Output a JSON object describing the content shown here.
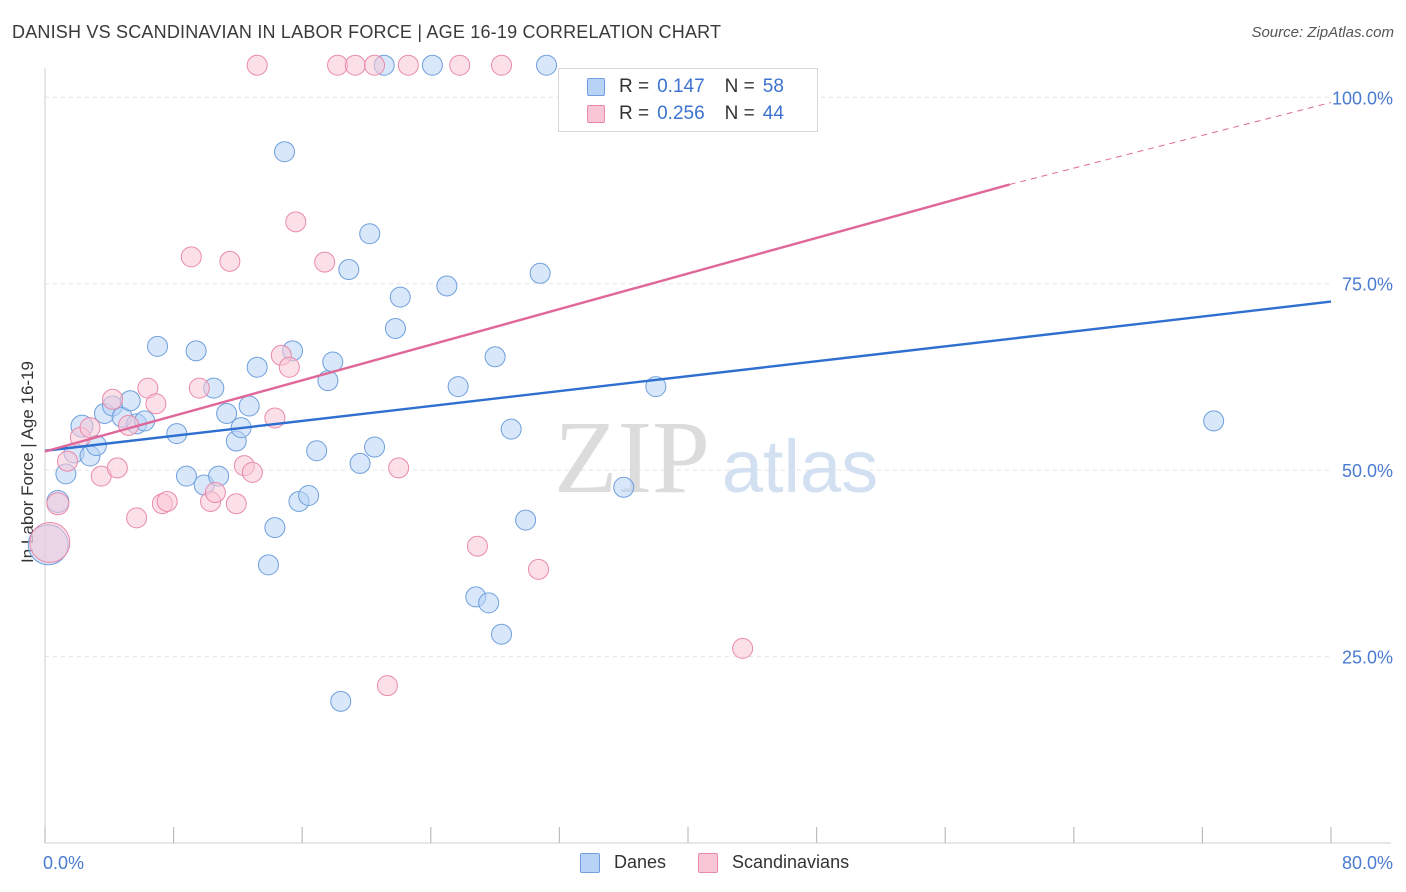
{
  "header": {
    "title": "DANISH VS SCANDINAVIAN IN LABOR FORCE | AGE 16-19 CORRELATION CHART",
    "source": "Source: ZipAtlas.com"
  },
  "watermark": {
    "zip": "ZIP",
    "atlas": "atlas"
  },
  "legend": {
    "rows": [
      {
        "r_label": "R = ",
        "r_value": "0.147",
        "n_label": "N = ",
        "n_value": "58",
        "fill": "#b8d3f5",
        "stroke": "#6f9fdc"
      },
      {
        "r_label": "R = ",
        "r_value": "0.256",
        "n_label": "N = ",
        "n_value": "44",
        "fill": "#f9c6d6",
        "stroke": "#e98aab"
      }
    ]
  },
  "bottom_legend": {
    "items": [
      {
        "label": "Danes",
        "fill": "#b8d3f5",
        "stroke": "#6f9fdc"
      },
      {
        "label": "Scandinavians",
        "fill": "#f9c6d6",
        "stroke": "#e98aab"
      }
    ]
  },
  "chart_data": {
    "type": "scatter",
    "title": "DANISH VS SCANDINAVIAN IN LABOR FORCE | AGE 16-19 CORRELATION CHART",
    "xlabel": "",
    "ylabel": "In Labor Force | Age 16-19",
    "xlim": [
      0,
      80
    ],
    "ylim": [
      0,
      105
    ],
    "x_tick_labels": [
      "0.0%",
      "80.0%"
    ],
    "y_ticks": [
      25,
      50,
      75,
      100
    ],
    "y_tick_labels": [
      "25.0%",
      "50.0%",
      "75.0%",
      "100.0%"
    ],
    "grid": true,
    "legend_position": "top-center",
    "colors": {
      "danes": "#2f6fd0",
      "scandinavians": "#e0679a"
    },
    "series": [
      {
        "name": "Danes",
        "color": "#2f6fd0",
        "fill": "#b8d3f5",
        "trendline": {
          "x": [
            0,
            80
          ],
          "y": [
            52.6,
            72.6
          ]
        },
        "points": [
          [
            0.2,
            40.0,
            20
          ],
          [
            0.8,
            45.8,
            11
          ],
          [
            1.3,
            49.5,
            10
          ],
          [
            1.8,
            52.3,
            10
          ],
          [
            2.3,
            55.9,
            11
          ],
          [
            2.8,
            51.9,
            10
          ],
          [
            3.2,
            53.3,
            10
          ],
          [
            3.7,
            57.6,
            10
          ],
          [
            4.2,
            58.6,
            10
          ],
          [
            4.8,
            57.1,
            10
          ],
          [
            5.3,
            59.3,
            10
          ],
          [
            5.7,
            56.2,
            10
          ],
          [
            6.2,
            56.6,
            10
          ],
          [
            7.0,
            66.6,
            10
          ],
          [
            8.2,
            54.9,
            10
          ],
          [
            8.8,
            49.2,
            10
          ],
          [
            9.4,
            66.0,
            10
          ],
          [
            9.9,
            48.0,
            10
          ],
          [
            10.5,
            61.0,
            10
          ],
          [
            10.8,
            49.2,
            10
          ],
          [
            11.3,
            57.6,
            10
          ],
          [
            11.9,
            53.9,
            10
          ],
          [
            12.2,
            55.7,
            10
          ],
          [
            12.7,
            58.6,
            10
          ],
          [
            13.2,
            63.8,
            10
          ],
          [
            13.9,
            37.3,
            10
          ],
          [
            14.3,
            42.3,
            10
          ],
          [
            14.9,
            92.7,
            10
          ],
          [
            15.4,
            66.0,
            10
          ],
          [
            15.8,
            45.8,
            10
          ],
          [
            16.4,
            46.6,
            10
          ],
          [
            16.9,
            52.6,
            10
          ],
          [
            17.6,
            62.0,
            10
          ],
          [
            17.9,
            64.5,
            10
          ],
          [
            18.4,
            19.0,
            10
          ],
          [
            18.9,
            76.9,
            10
          ],
          [
            19.6,
            50.9,
            10
          ],
          [
            20.2,
            81.7,
            10
          ],
          [
            20.5,
            53.1,
            10
          ],
          [
            21.1,
            104.3,
            10
          ],
          [
            21.8,
            69.0,
            10
          ],
          [
            22.1,
            73.2,
            10
          ],
          [
            24.1,
            104.3,
            10
          ],
          [
            25.0,
            74.7,
            10
          ],
          [
            25.7,
            61.2,
            10
          ],
          [
            26.8,
            33.0,
            10
          ],
          [
            27.6,
            32.2,
            10
          ],
          [
            28.0,
            65.2,
            10
          ],
          [
            28.4,
            28.0,
            10
          ],
          [
            29.0,
            55.5,
            10
          ],
          [
            29.9,
            43.3,
            10
          ],
          [
            30.8,
            76.4,
            10
          ],
          [
            31.2,
            104.3,
            10
          ],
          [
            36.0,
            47.7,
            10
          ],
          [
            38.0,
            61.2,
            10
          ],
          [
            72.7,
            56.6,
            10
          ]
        ]
      },
      {
        "name": "Scandinavians",
        "color": "#e0679a",
        "fill": "#f9c6d6",
        "trendline": {
          "x": [
            0,
            60
          ],
          "y": [
            52.5,
            88.3
          ],
          "dash_x": [
            60,
            80
          ],
          "dash_y": [
            88.3,
            99.3
          ]
        },
        "points": [
          [
            0.3,
            40.3,
            20
          ],
          [
            0.8,
            45.5,
            11
          ],
          [
            1.4,
            51.2,
            10
          ],
          [
            2.2,
            54.4,
            10
          ],
          [
            2.8,
            55.7,
            10
          ],
          [
            3.5,
            49.2,
            10
          ],
          [
            4.2,
            59.5,
            10
          ],
          [
            4.5,
            50.3,
            10
          ],
          [
            5.2,
            56.0,
            10
          ],
          [
            5.7,
            43.6,
            10
          ],
          [
            6.4,
            61.0,
            10
          ],
          [
            6.9,
            58.9,
            10
          ],
          [
            7.3,
            45.5,
            10
          ],
          [
            7.6,
            45.8,
            10
          ],
          [
            9.1,
            78.6,
            10
          ],
          [
            9.6,
            61.0,
            10
          ],
          [
            10.3,
            45.8,
            10
          ],
          [
            10.6,
            47.0,
            10
          ],
          [
            11.5,
            78.0,
            10
          ],
          [
            11.9,
            45.5,
            10
          ],
          [
            12.4,
            50.6,
            10
          ],
          [
            12.9,
            49.7,
            10
          ],
          [
            13.2,
            104.3,
            10
          ],
          [
            14.3,
            57.0,
            10
          ],
          [
            14.7,
            65.4,
            10
          ],
          [
            15.2,
            63.8,
            10
          ],
          [
            15.6,
            83.3,
            10
          ],
          [
            17.4,
            77.9,
            10
          ],
          [
            18.2,
            104.3,
            10
          ],
          [
            19.3,
            104.3,
            10
          ],
          [
            20.5,
            104.3,
            10
          ],
          [
            21.3,
            21.1,
            10
          ],
          [
            22.0,
            50.3,
            10
          ],
          [
            22.6,
            104.3,
            10
          ],
          [
            25.8,
            104.3,
            10
          ],
          [
            26.9,
            39.8,
            10
          ],
          [
            28.4,
            104.3,
            10
          ],
          [
            30.7,
            36.7,
            10
          ],
          [
            43.4,
            26.1,
            10
          ]
        ]
      }
    ]
  }
}
